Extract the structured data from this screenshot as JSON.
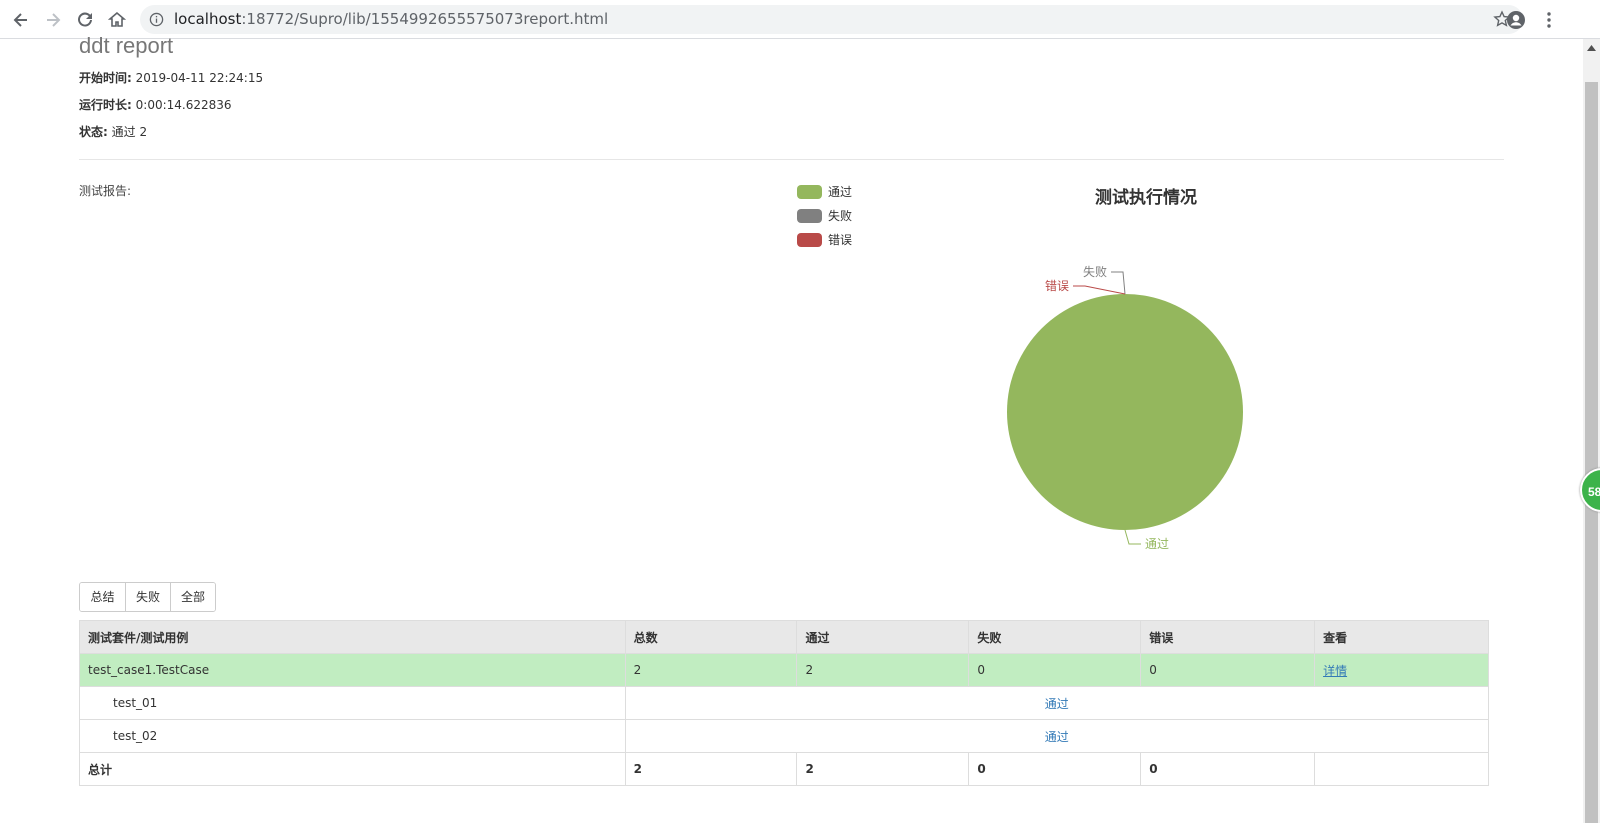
{
  "browser": {
    "url_host": "localhost",
    "url_rest": ":18772/Supro/lib/1554992655575073report.html"
  },
  "report": {
    "title": "ddt report",
    "start_label": "开始时间:",
    "start_value": "2019-04-11 22:24:15",
    "duration_label": "运行时长:",
    "duration_value": "0:00:14.622836",
    "status_label": "状态:",
    "status_value": "通过 2",
    "section_label": "测试报告:"
  },
  "floating_badge": "58",
  "chart_data": {
    "type": "pie",
    "title": "测试执行情况",
    "legend_position": "top-left of chart",
    "slices": [
      {
        "label": "通过",
        "value": 2,
        "color": "#94b75d"
      },
      {
        "label": "失败",
        "value": 0,
        "color": "#808080"
      },
      {
        "label": "错误",
        "value": 0,
        "color": "#b94a48"
      }
    ]
  },
  "filters": [
    "总结",
    "失败",
    "全部"
  ],
  "table": {
    "headers": [
      "测试套件/测试用例",
      "总数",
      "通过",
      "失败",
      "错误",
      "查看"
    ],
    "suite": {
      "name": "test_case1.TestCase",
      "total": "2",
      "pass": "2",
      "fail": "0",
      "error": "0",
      "view": "详情"
    },
    "cases": [
      {
        "name": "test_01",
        "result": "通过"
      },
      {
        "name": "test_02",
        "result": "通过"
      }
    ],
    "total": {
      "label": "总计",
      "total": "2",
      "pass": "2",
      "fail": "0",
      "error": "0"
    }
  }
}
